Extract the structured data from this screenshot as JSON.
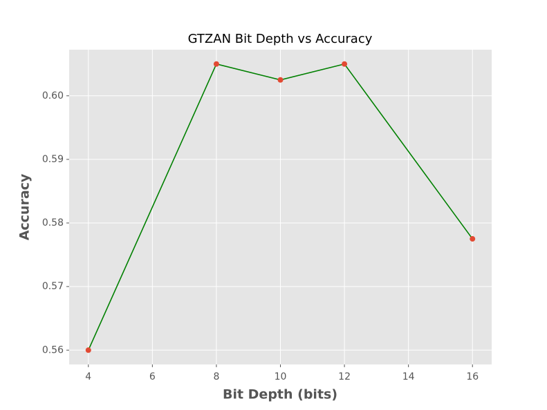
{
  "chart_data": {
    "type": "line",
    "title": "GTZAN Bit Depth vs Accuracy",
    "x_label": "Bit Depth (bits)",
    "y_label": "Accuracy",
    "x": [
      4,
      8,
      10,
      12,
      16
    ],
    "series": [
      {
        "values": [
          0.56,
          0.605,
          0.6025,
          0.605,
          0.5775
        ],
        "color": "#008000",
        "marker_color": "#e24a33"
      }
    ],
    "xlim": [
      3.4,
      16.6
    ],
    "xticks": [
      4,
      6,
      8,
      10,
      12,
      14,
      16
    ],
    "ylim": [
      0.55775,
      0.60725
    ],
    "yticks": [
      0.56,
      0.57,
      0.58,
      0.59,
      {
        "value": 0.6,
        "label": "0.60"
      }
    ],
    "grid": true,
    "background": "#e5e5e5"
  }
}
